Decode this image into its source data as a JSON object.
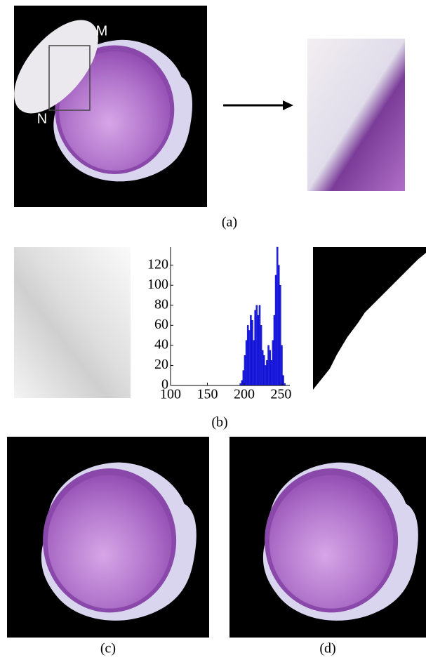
{
  "panels": {
    "a": {
      "caption": "(a)",
      "label_m": "M",
      "label_n": "N"
    },
    "b": {
      "caption": "(b)"
    },
    "c": {
      "caption": "(c)"
    },
    "d": {
      "caption": "(d)"
    }
  },
  "chart_data": {
    "type": "histogram",
    "color": "#2020f0",
    "xlim": [
      100,
      262
    ],
    "ylim": [
      0,
      138
    ],
    "xticks": [
      100,
      150,
      200,
      250
    ],
    "yticks": [
      0,
      20,
      40,
      60,
      80,
      100,
      120
    ],
    "bins": [
      190,
      192,
      194,
      196,
      198,
      200,
      202,
      204,
      206,
      208,
      210,
      212,
      214,
      216,
      218,
      220,
      222,
      224,
      226,
      228,
      230,
      232,
      234,
      236,
      238,
      240,
      242,
      244,
      246,
      248,
      250,
      252,
      254,
      256
    ],
    "counts": [
      0,
      0,
      2,
      5,
      15,
      30,
      45,
      60,
      55,
      70,
      65,
      45,
      75,
      80,
      70,
      80,
      60,
      35,
      30,
      20,
      25,
      40,
      35,
      25,
      45,
      70,
      110,
      138,
      120,
      100,
      40,
      10,
      2
    ]
  }
}
